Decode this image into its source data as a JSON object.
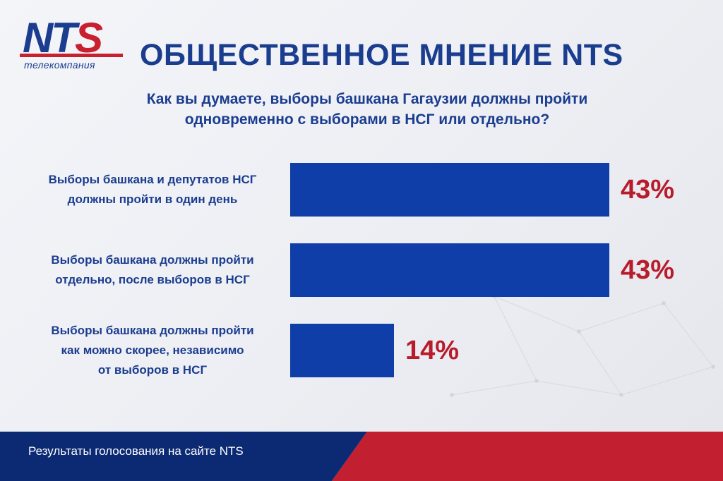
{
  "logo": {
    "main": "NT",
    "accent": "S",
    "sub": "телекомпания"
  },
  "header": {
    "title": "ОБЩЕСТВЕННОЕ МНЕНИЕ NTS"
  },
  "question": {
    "lines": [
      "Как вы думаете, выборы башкана Гагаузии должны пройти",
      "одновременно с выборами в НСГ или отдельно?"
    ]
  },
  "footer": {
    "text": "Результаты голосования на сайте NTS"
  },
  "colors": {
    "bar": "#0f3ea8",
    "percent": "#b81b2a",
    "brand_blue": "#1b3d8f",
    "brand_red": "#c8202f"
  },
  "chart_data": {
    "type": "bar",
    "orientation": "horizontal",
    "title": "Как вы думаете, выборы башкана Гагаузии должны пройти одновременно с выборами в НСГ или отдельно?",
    "categories": [
      [
        "Выборы башкана и депутатов НСГ",
        "должны пройти в один день"
      ],
      [
        "Выборы башкана должны пройти",
        "отдельно, после выборов в НСГ"
      ],
      [
        "Выборы башкана должны пройти",
        "как можно скорее, независимо",
        "от выборов в НСГ"
      ]
    ],
    "values": [
      43,
      43,
      14
    ],
    "value_labels": [
      "43%",
      "43%",
      "14%"
    ],
    "xlim": [
      0,
      43
    ]
  }
}
